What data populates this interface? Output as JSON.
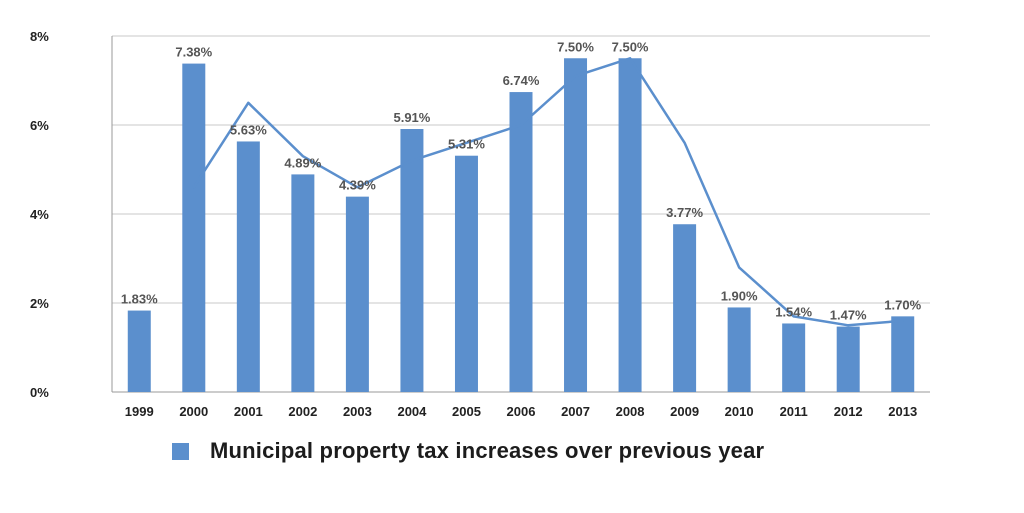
{
  "chart_data": {
    "type": "bar",
    "categories": [
      "1999",
      "2000",
      "2001",
      "2002",
      "2003",
      "2004",
      "2005",
      "2006",
      "2007",
      "2008",
      "2009",
      "2010",
      "2011",
      "2012",
      "2013"
    ],
    "series": [
      {
        "name": "Municipal property tax increases over previous year",
        "values": [
          1.83,
          7.38,
          5.63,
          4.89,
          4.39,
          5.91,
          5.31,
          6.74,
          7.5,
          7.5,
          3.77,
          1.9,
          1.54,
          1.47,
          1.7
        ],
        "data_labels": [
          "1.83%",
          "7.38%",
          "5.63%",
          "4.89%",
          "4.39%",
          "5.91%",
          "5.31%",
          "6.74%",
          "7.50%",
          "7.50%",
          "3.77%",
          "1.90%",
          "1.54%",
          "1.47%",
          "1.70%"
        ]
      }
    ],
    "trend_line": {
      "x": [
        "2000",
        "2001",
        "2002",
        "2003",
        "2004",
        "2005",
        "2006",
        "2007",
        "2008",
        "2009",
        "2010",
        "2011",
        "2012",
        "2013"
      ],
      "values": [
        4.6,
        6.5,
        5.3,
        4.6,
        5.2,
        5.6,
        6.0,
        7.1,
        7.5,
        5.6,
        2.8,
        1.7,
        1.5,
        1.6
      ]
    },
    "ylim": [
      0,
      8
    ],
    "yticks": [
      0,
      2,
      4,
      6,
      8
    ],
    "ytick_labels": [
      "0%",
      "2%",
      "4%",
      "6%",
      "8%"
    ],
    "grid": true,
    "legend_position": "bottom",
    "colors": {
      "bar": "#5b8fcd",
      "line": "#5b8fcd",
      "grid": "#c8c8c8",
      "axis": "#9a9a9a"
    }
  }
}
